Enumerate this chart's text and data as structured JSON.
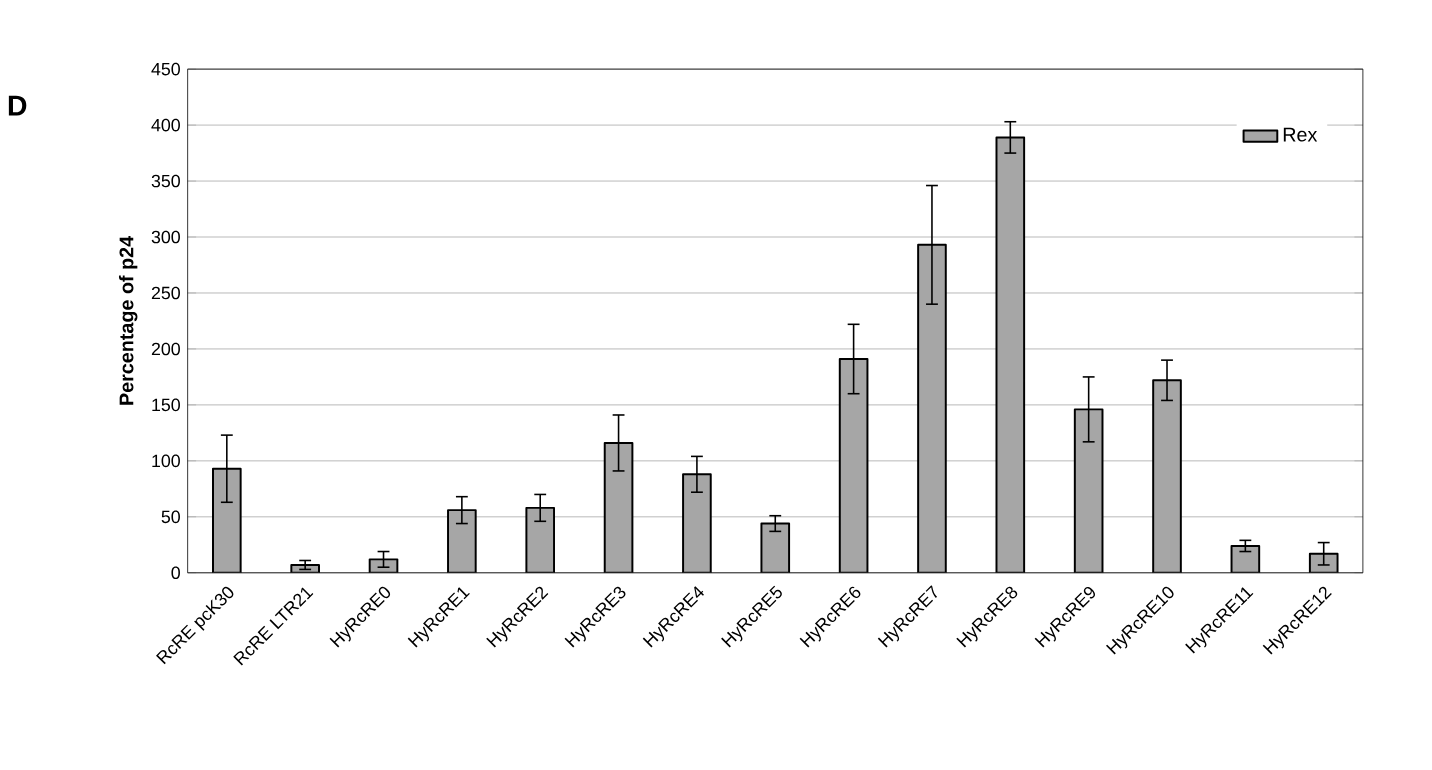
{
  "chart_data": {
    "type": "bar",
    "annotations": [
      "D"
    ],
    "ylabel": "Percentage of p24",
    "categories": [
      "RcRE pcK30",
      "RcRE LTR21",
      "HyRcRE0",
      "HyRcRE1",
      "HyRcRE2",
      "HyRcRE3",
      "HyRcRE4",
      "HyRcRE5",
      "HyRcRE6",
      "HyRcRE7",
      "HyRcRE8",
      "HyRcRE9",
      "HyRcRE10",
      "HyRcRE11",
      "HyRcRE12"
    ],
    "series": [
      {
        "name": "Rex",
        "color": "#a6a6a6",
        "values": [
          93,
          7,
          12,
          56,
          58,
          116,
          88,
          44,
          191,
          293,
          389,
          146,
          172,
          24,
          17
        ],
        "errors": [
          30,
          4,
          7,
          12,
          12,
          25,
          16,
          7,
          31,
          53,
          14,
          29,
          18,
          5,
          10
        ]
      }
    ],
    "ylim": [
      0,
      450
    ],
    "yticks": [
      0,
      50,
      100,
      150,
      200,
      250,
      300,
      350,
      400,
      450
    ],
    "grid": "y",
    "legend": "top right"
  }
}
